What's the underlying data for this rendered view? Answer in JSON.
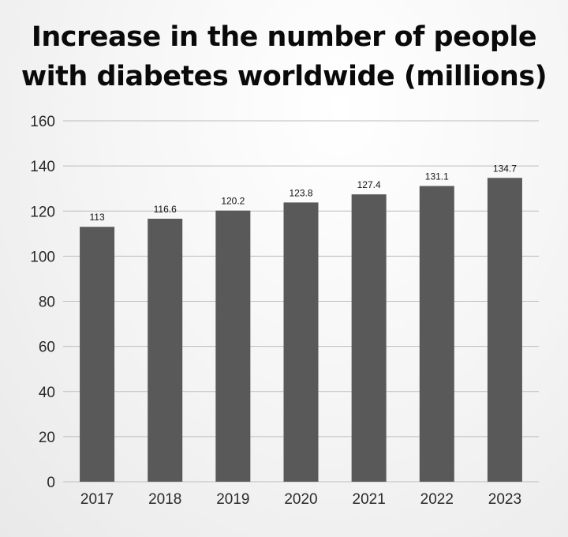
{
  "chart_data": {
    "type": "bar",
    "title_lines": [
      "Increase in the number of people",
      "with diabetes worldwide (millions)"
    ],
    "categories": [
      "2017",
      "2018",
      "2019",
      "2020",
      "2021",
      "2022",
      "2023"
    ],
    "values": [
      113,
      116.6,
      120.2,
      123.8,
      127.4,
      131.1,
      134.7
    ],
    "value_labels": [
      "113",
      "116.6",
      "120.2",
      "123.8",
      "127.4",
      "131.1",
      "134.7"
    ],
    "y_ticks": [
      0,
      20,
      40,
      60,
      80,
      100,
      120,
      140,
      160
    ],
    "ylim": [
      0,
      160
    ],
    "grid": true,
    "legend": "none",
    "bar_color": "#595959"
  }
}
